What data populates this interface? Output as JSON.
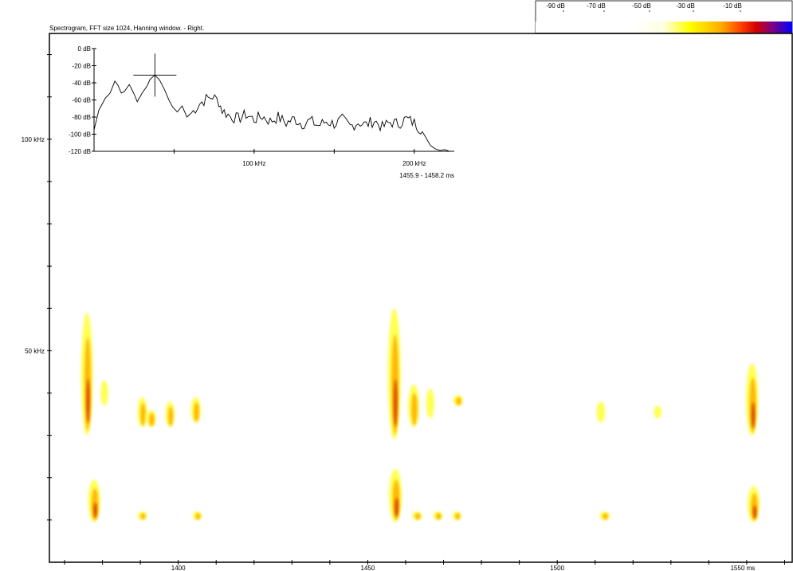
{
  "title": "Spectrogram, FFT size 1024, Hanning window. - Right.",
  "colors": {
    "background": "#ffffff",
    "axis": "#000000",
    "energy_low": "#ffff40",
    "energy_mid": "#ffb000",
    "energy_high": "#d03000"
  },
  "color_scale": {
    "labels": [
      "-90 dB",
      "-70 dB",
      "-50 dB",
      "-30 dB",
      "-10 dB"
    ],
    "colors": [
      "#ffffff",
      "#ffffff",
      "#ffffe0",
      "#ffff00",
      "#ffc000",
      "#ff6000",
      "#e00000",
      "#c00040",
      "#800080",
      "#4000a0",
      "#0000ff"
    ]
  },
  "chart_data": [
    {
      "type": "heatmap",
      "title": "Spectrogram, FFT size 1024, Hanning window. - Right.",
      "xlabel": "",
      "ylabel": "",
      "x_ticks": [
        "1400",
        "1450",
        "1500",
        "1550 ms"
      ],
      "x_tick_values": [
        1400,
        1450,
        1500,
        1550
      ],
      "y_ticks": [
        "50 kHz",
        "100 kHz"
      ],
      "y_tick_values": [
        50,
        100
      ],
      "xlim": [
        1366,
        1562
      ],
      "ylim": [
        0,
        125
      ],
      "blobs": [
        {
          "t": 1375.9,
          "f0": 30,
          "f1": 59,
          "intensity": 0.85
        },
        {
          "t": 1377.8,
          "f0": 9.5,
          "f1": 19.5,
          "intensity": 0.9
        },
        {
          "t": 1380.5,
          "f0": 37,
          "f1": 43,
          "intensity": 0.35
        },
        {
          "t": 1390.5,
          "f0": 32,
          "f1": 39,
          "intensity": 0.55
        },
        {
          "t": 1392.8,
          "f0": 32,
          "f1": 36,
          "intensity": 0.6
        },
        {
          "t": 1397.8,
          "f0": 32,
          "f1": 38,
          "intensity": 0.5
        },
        {
          "t": 1404.6,
          "f0": 33,
          "f1": 39,
          "intensity": 0.6
        },
        {
          "t": 1390.5,
          "f0": 10,
          "f1": 12,
          "intensity": 0.5
        },
        {
          "t": 1405,
          "f0": 10,
          "f1": 12,
          "intensity": 0.5
        },
        {
          "t": 1457.0,
          "f0": 29,
          "f1": 60,
          "intensity": 1.0
        },
        {
          "t": 1457.3,
          "f0": 9.5,
          "f1": 22,
          "intensity": 1.0
        },
        {
          "t": 1462.1,
          "f0": 32,
          "f1": 42,
          "intensity": 0.75
        },
        {
          "t": 1463,
          "f0": 10,
          "f1": 12,
          "intensity": 0.6
        },
        {
          "t": 1466.5,
          "f0": 34,
          "f1": 41,
          "intensity": 0.4
        },
        {
          "t": 1473.8,
          "f0": 37,
          "f1": 39.5,
          "intensity": 0.6
        },
        {
          "t": 1468.5,
          "f0": 10,
          "f1": 12,
          "intensity": 0.55
        },
        {
          "t": 1473.5,
          "f0": 10,
          "f1": 12,
          "intensity": 0.5
        },
        {
          "t": 1511.5,
          "f0": 33,
          "f1": 38,
          "intensity": 0.45
        },
        {
          "t": 1512.5,
          "f0": 10,
          "f1": 12,
          "intensity": 0.6
        },
        {
          "t": 1526.5,
          "f0": 34,
          "f1": 37,
          "intensity": 0.35
        },
        {
          "t": 1551.4,
          "f0": 30,
          "f1": 47,
          "intensity": 0.9
        },
        {
          "t": 1551.8,
          "f0": 9.5,
          "f1": 18,
          "intensity": 0.9
        }
      ]
    },
    {
      "type": "line",
      "title": "",
      "xlabel": "",
      "ylabel": "",
      "x_ticks": [
        "100 kHz",
        "200 kHz"
      ],
      "x_tick_values": [
        100,
        200
      ],
      "y_ticks": [
        "0 dB",
        "-20 dB",
        "-40 dB",
        "-60 dB",
        "-80 dB",
        "-100 dB",
        "-120 dB"
      ],
      "y_tick_values": [
        0,
        -20,
        -40,
        -60,
        -80,
        -100,
        -120
      ],
      "xlim": [
        0,
        225
      ],
      "ylim": [
        -120,
        0
      ],
      "time_range_label": "1455.9 - 1458.2 ms",
      "peak": {
        "x": 38,
        "y": -31
      },
      "series": [
        {
          "x": [
            0,
            3,
            7,
            10,
            13,
            15,
            17,
            19,
            22,
            25,
            27,
            30,
            33,
            35,
            38,
            41,
            44,
            47,
            49,
            52,
            55,
            58,
            62,
            66,
            70,
            74,
            78,
            80,
            85,
            90,
            95,
            100,
            105,
            110,
            115,
            120,
            125,
            130,
            135,
            140,
            145,
            150,
            155,
            160,
            165,
            170,
            175,
            180,
            185,
            190,
            195,
            200,
            204,
            207,
            210,
            213,
            216,
            219,
            222
          ],
          "y": [
            -95,
            -72,
            -58,
            -52,
            -38,
            -43,
            -52,
            -50,
            -42,
            -53,
            -62,
            -52,
            -44,
            -36,
            -31,
            -37,
            -48,
            -61,
            -68,
            -74,
            -67,
            -80,
            -73,
            -64,
            -59,
            -56,
            -62,
            -72,
            -79,
            -82,
            -77,
            -83,
            -79,
            -85,
            -80,
            -87,
            -82,
            -88,
            -84,
            -90,
            -85,
            -88,
            -83,
            -91,
            -86,
            -89,
            -84,
            -92,
            -86,
            -88,
            -82,
            -87,
            -94,
            -103,
            -113,
            -117,
            -119,
            -118,
            -120
          ]
        }
      ]
    }
  ]
}
